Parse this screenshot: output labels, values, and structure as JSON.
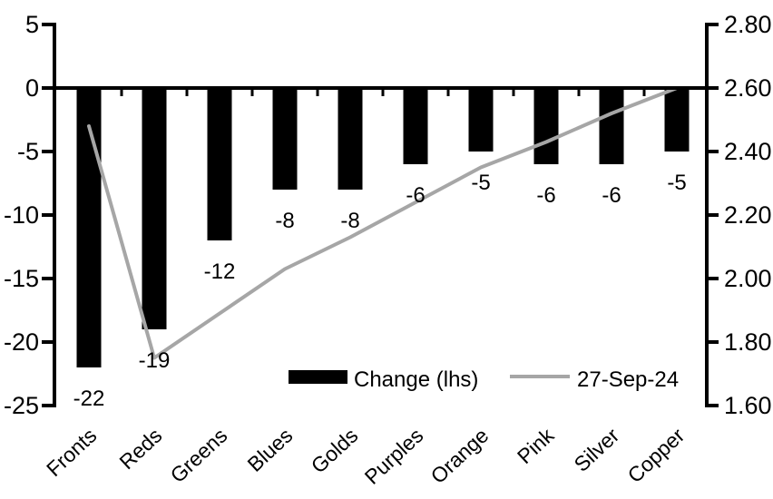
{
  "chart_data": {
    "type": "bar",
    "subtype": "combo-bar-line",
    "title": "",
    "categories": [
      "Fronts",
      "Reds",
      "Greens",
      "Blues",
      "Golds",
      "Purples",
      "Orange",
      "Pink",
      "Silver",
      "Copper"
    ],
    "series": [
      {
        "name": "Change (lhs)",
        "type": "bar",
        "axis": "left",
        "color": "#000000",
        "values": [
          -22,
          -19,
          -12,
          -8,
          -8,
          -6,
          -5,
          -6,
          -6,
          -5
        ],
        "data_labels": [
          "-22",
          "-19",
          "-12",
          "-8",
          "-8",
          "-6",
          "-5",
          "-6",
          "-6",
          "-5"
        ]
      },
      {
        "name": "27-Sep-24",
        "type": "line",
        "axis": "right",
        "color": "#a6a6a6",
        "values": [
          2.48,
          1.75,
          1.89,
          2.03,
          2.13,
          2.24,
          2.35,
          2.43,
          2.52,
          2.6
        ]
      }
    ],
    "left_axis": {
      "min": -25,
      "max": 5,
      "step": 5,
      "tick_labels": [
        "5",
        "0",
        "-5",
        "-10",
        "-15",
        "-20",
        "-25"
      ]
    },
    "right_axis": {
      "min": 1.6,
      "max": 2.8,
      "step": 0.2,
      "tick_labels": [
        "2.80",
        "2.60",
        "2.40",
        "2.20",
        "2.00",
        "1.80",
        "1.60"
      ]
    },
    "xlabel": "",
    "ylabel": "",
    "grid": false,
    "legend_position": "inside-bottom",
    "legend": [
      {
        "swatch": "bar",
        "label": "Change (lhs)"
      },
      {
        "swatch": "line",
        "label": "27-Sep-24"
      }
    ],
    "colors": {
      "bar": "#000000",
      "line": "#a6a6a6",
      "axis": "#000000",
      "text": "#000000",
      "background": "#ffffff"
    }
  }
}
